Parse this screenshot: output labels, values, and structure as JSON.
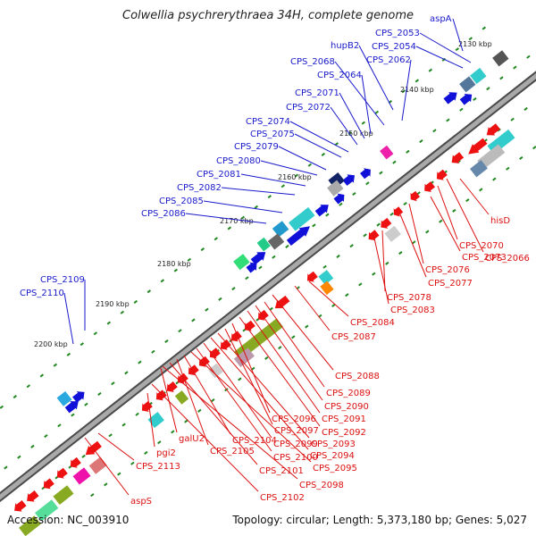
{
  "title": "Colwellia psychrerythraea 34H, complete genome",
  "footer": {
    "accession": "Accession: NC_003910",
    "summary": "Topology: circular; Length: 5,373,180 bp; Genes: 5,027"
  },
  "colors": {
    "forward_label": "#1a1acc",
    "reverse_label": "#dd1111",
    "backbone": "#777777",
    "tick_dots": "#228822"
  },
  "scale_labels": [
    "2130 kbp",
    "2140 kbp",
    "2150 kbp",
    "2160 kbp",
    "2170 kbp",
    "2180 kbp",
    "2190 kbp",
    "2200 kbp"
  ],
  "forward_labels": [
    "aspA",
    "CPS_2053",
    "CPS_2054",
    "hupB2",
    "CPS_2062",
    "CPS_2068",
    "CPS_2064",
    "CPS_2071",
    "CPS_2072",
    "CPS_2074",
    "CPS_2075",
    "CPS_2079",
    "CPS_2080",
    "CPS_2081",
    "CPS_2082",
    "CPS_2085",
    "CPS_2086",
    "CPS_2109",
    "CPS_2110"
  ],
  "reverse_labels": [
    "hisD",
    "CPS_2070",
    "CPS_2073",
    "CPS_2066",
    "CPS_2076",
    "CPS_2077",
    "CPS_2078",
    "CPS_2083",
    "CPS_2084",
    "CPS_2087",
    "CPS_2088",
    "CPS_2089",
    "CPS_2090",
    "CPS_2091",
    "CPS_2092",
    "CPS_2096",
    "CPS_2097",
    "CPS_2093",
    "CPS_2094",
    "CPS_2099",
    "CPS_2100",
    "CPS_2095",
    "CPS_2104",
    "CPS_2105",
    "CPS_2101",
    "CPS_2098",
    "galU2",
    "pgi2",
    "CPS_2113",
    "CPS_2102",
    "aspS"
  ]
}
